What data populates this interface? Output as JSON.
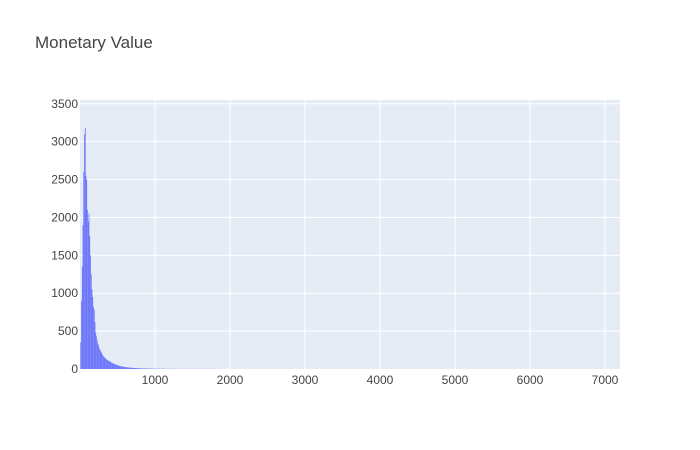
{
  "chart_data": {
    "type": "bar",
    "title": "Monetary Value",
    "xlabel": "",
    "ylabel": "",
    "xlim": [
      0,
      7200
    ],
    "ylim": [
      0,
      3550
    ],
    "x_ticks": [
      1000,
      2000,
      3000,
      4000,
      5000,
      6000,
      7000
    ],
    "x_tick_labels": [
      "1000",
      "2000",
      "3000",
      "4000",
      "5000",
      "6000",
      "7000"
    ],
    "y_ticks": [
      0,
      500,
      1000,
      1500,
      2000,
      2500,
      3000,
      3500
    ],
    "y_tick_labels": [
      "0",
      "500",
      "1000",
      "1500",
      "2000",
      "2500",
      "3000",
      "3500"
    ],
    "grid": true,
    "colors": {
      "bar": "#636efa",
      "plot_bg": "#e5ecf6",
      "grid": "#ffffff",
      "text": "#444444"
    },
    "bin_width": 10,
    "x": [
      10,
      20,
      30,
      40,
      50,
      60,
      70,
      80,
      90,
      100,
      110,
      120,
      130,
      140,
      150,
      160,
      170,
      180,
      190,
      200,
      210,
      220,
      230,
      240,
      250,
      260,
      270,
      280,
      290,
      300,
      310,
      320,
      330,
      340,
      350,
      360,
      370,
      380,
      390,
      400,
      410,
      420,
      430,
      440,
      450,
      460,
      470,
      480,
      490,
      500,
      510,
      520,
      530,
      540,
      550,
      560,
      570,
      580,
      590,
      600,
      610,
      620,
      630,
      640,
      650,
      660,
      670,
      680,
      690,
      700,
      710,
      720,
      730,
      740,
      750,
      760,
      770,
      780,
      790,
      800,
      810,
      820,
      830,
      840,
      850,
      860,
      870,
      880,
      890,
      900,
      910,
      920,
      930,
      940,
      950,
      960,
      970,
      980,
      990,
      1000,
      1010,
      1020,
      1030,
      1040,
      1050,
      1060,
      1070,
      1080,
      1090,
      1100,
      1110,
      1120,
      1130,
      1140,
      1150,
      1160,
      1170,
      1180,
      1190,
      1200,
      1210,
      1220,
      1230,
      1240,
      1250,
      1260,
      1270,
      1280,
      1290,
      1300,
      1310,
      1320,
      1330,
      1340,
      1350,
      1360,
      1370,
      1380,
      1390,
      1400,
      1410,
      1420,
      1430,
      1440,
      1450,
      1460,
      1470,
      1480,
      1490,
      1500,
      1510,
      1520,
      1530,
      1540,
      1550,
      1560,
      1570,
      1580,
      1590,
      1600,
      1610,
      1620,
      1630,
      1640,
      1650,
      1660,
      1670,
      1680,
      1690,
      1700,
      1710,
      1720,
      1730,
      1740,
      1750,
      1760,
      1770,
      1780,
      1790,
      1800
    ],
    "values": [
      350,
      900,
      1350,
      1900,
      2600,
      3100,
      3180,
      2550,
      2500,
      2100,
      1950,
      2050,
      1750,
      1500,
      1250,
      1050,
      950,
      820,
      780,
      620,
      480,
      430,
      380,
      330,
      300,
      270,
      250,
      230,
      210,
      190,
      170,
      160,
      150,
      140,
      130,
      120,
      115,
      110,
      105,
      100,
      92,
      86,
      80,
      75,
      70,
      66,
      62,
      58,
      54,
      50,
      47,
      44,
      41,
      38,
      36,
      34,
      32,
      30,
      28,
      26,
      25,
      24,
      22,
      21,
      20,
      19,
      18,
      17,
      16,
      15,
      14,
      14,
      13,
      12,
      12,
      11,
      11,
      10,
      10,
      9,
      9,
      8,
      8,
      8,
      7,
      7,
      7,
      6,
      6,
      6,
      6,
      5,
      5,
      5,
      5,
      5,
      4,
      4,
      4,
      4,
      4,
      4,
      3,
      3,
      3,
      3,
      3,
      3,
      3,
      3,
      3,
      2,
      2,
      2,
      2,
      2,
      2,
      2,
      2,
      2,
      2,
      2,
      2,
      2,
      2,
      2,
      1,
      1,
      1,
      1,
      1,
      1,
      1,
      1,
      1,
      1,
      1,
      1,
      1,
      1,
      1,
      1,
      1,
      1,
      1,
      1,
      1,
      1,
      1,
      1,
      1,
      1,
      1,
      1,
      1,
      1,
      1,
      1,
      1,
      1,
      1,
      1,
      1,
      1,
      1,
      1,
      1,
      1,
      1,
      1,
      1,
      1,
      1,
      1,
      1,
      1,
      1,
      1,
      1,
      1
    ]
  }
}
